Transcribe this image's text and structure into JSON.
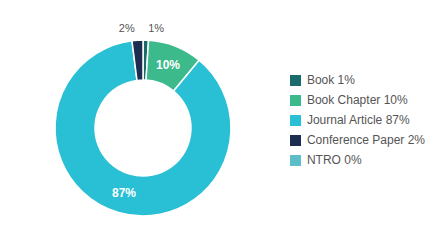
{
  "chart_data": {
    "type": "pie",
    "categories": [
      "Book 1%",
      "Book Chapter 10%",
      "Journal Article 87%",
      "Conference Paper 2%",
      "NTRO 0%"
    ],
    "values": [
      1,
      10,
      87,
      2,
      0
    ],
    "value_labels": [
      "1%",
      "10%",
      "87%",
      "2%",
      null
    ],
    "data_labels": true,
    "colors": [
      "#1a6b6e",
      "#3dba8c",
      "#29bfd4",
      "#1c2d4f",
      "#5bbec8"
    ],
    "legend": "right"
  }
}
